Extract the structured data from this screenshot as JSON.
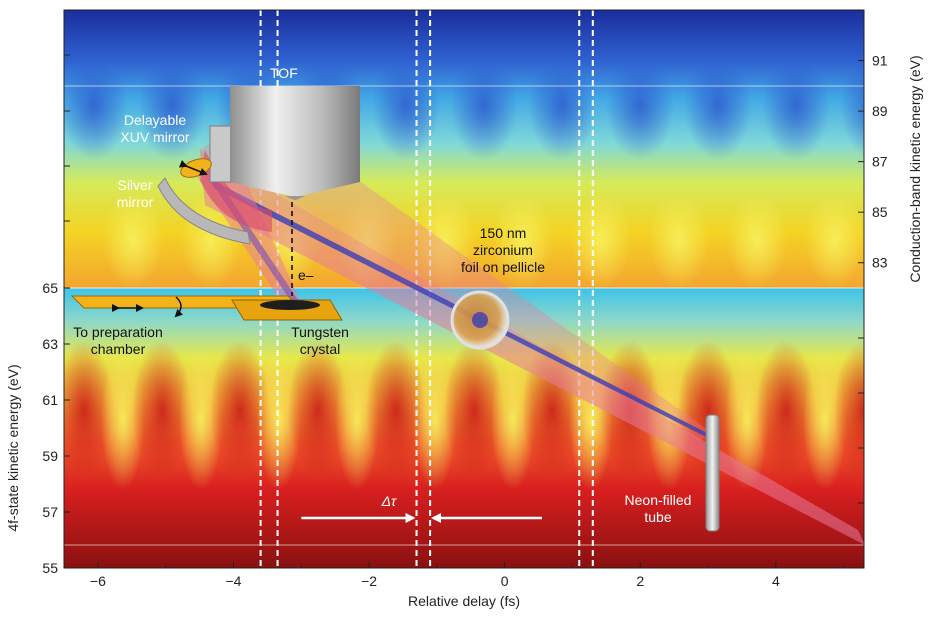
{
  "figure": {
    "labels": {
      "tof": "TOF",
      "delayable_mirror_line1": "Delayable",
      "delayable_mirror_line2": "XUV mirror",
      "silver_mirror_line1": "Silver",
      "silver_mirror_line2": "mirror",
      "electron": "e–",
      "to_prep_line1": "To preparation",
      "to_prep_line2": "chamber",
      "tungsten_line1": "Tungsten",
      "tungsten_line2": "crystal",
      "zirconium_line1": "150 nm",
      "zirconium_line2": "zirconium",
      "zirconium_line3": "foil on pellicle",
      "neon_line1": "Neon-filled",
      "neon_line2": "tube",
      "delta_tau": "Δτ"
    },
    "colors": {
      "beam": "#e87a9a",
      "xuv_beam": "#3a3fb8",
      "dashed_lines": "#ffffff",
      "arrows": "#ffffff"
    }
  },
  "chart_data": {
    "type": "heatmap",
    "xlabel": "Relative delay (fs)",
    "ylabel_left": "4f-state kinetic energy (eV)",
    "ylabel_right": "Conduction-band kinetic energy (eV)",
    "x_ticks": [
      "−6",
      "−4",
      "−2",
      "0",
      "2",
      "4"
    ],
    "y_left_ticks": [
      "55",
      "57",
      "59",
      "61",
      "63",
      "65"
    ],
    "y_right_ticks": [
      "83",
      "85",
      "87",
      "89",
      "91"
    ],
    "xlim": [
      -6.5,
      5.3
    ],
    "ylim_left": [
      55,
      65
    ],
    "ylim_right": [
      82,
      93
    ],
    "dashed_delay_lines": [
      -3.6,
      -3.35,
      -1.3,
      -1.1,
      1.1,
      1.3
    ],
    "delta_tau_span": [
      -1.3,
      -1.1
    ]
  }
}
